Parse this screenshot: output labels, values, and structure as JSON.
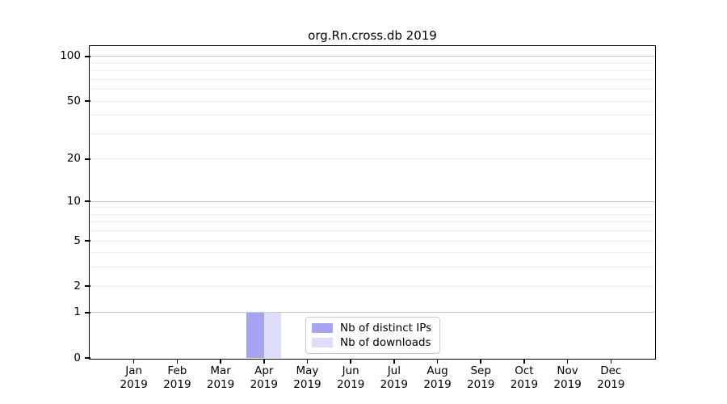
{
  "chart_data": {
    "type": "bar",
    "title": "org.Rn.cross.db 2019",
    "categories": [
      "Jan 2019",
      "Feb 2019",
      "Mar 2019",
      "Apr 2019",
      "May 2019",
      "Jun 2019",
      "Jul 2019",
      "Aug 2019",
      "Sep 2019",
      "Oct 2019",
      "Nov 2019",
      "Dec 2019"
    ],
    "x_axis": {
      "months": [
        "Jan",
        "Feb",
        "Mar",
        "Apr",
        "May",
        "Jun",
        "Jul",
        "Aug",
        "Sep",
        "Oct",
        "Nov",
        "Dec"
      ],
      "year_label": "2019"
    },
    "series": [
      {
        "name": "Nb of distinct IPs",
        "color": "#a4a4f2",
        "values": [
          0,
          0,
          0,
          1,
          0,
          0,
          0,
          0,
          0,
          0,
          0,
          0
        ]
      },
      {
        "name": "Nb of downloads",
        "color": "#dedefa",
        "values": [
          0,
          0,
          0,
          1,
          0,
          0,
          0,
          0,
          0,
          0,
          0,
          0
        ]
      }
    ],
    "y_axis": {
      "scale": "log1p",
      "tick_values": [
        0,
        1,
        2,
        5,
        10,
        20,
        50,
        100
      ],
      "max": 116,
      "major_gridlines": [
        1,
        10,
        100
      ],
      "minor_gridlines": [
        2,
        3,
        4,
        6,
        7,
        8,
        9,
        5,
        20,
        30,
        40,
        50,
        60,
        70,
        80,
        90
      ]
    },
    "legend": {
      "position": "lower center"
    },
    "grid": true,
    "colors": {
      "axis": "#000000",
      "grid_major": "#c9c9c9",
      "grid_minor": "#ededed",
      "legend_border": "#c9c9c9",
      "background": "#ffffff"
    }
  }
}
